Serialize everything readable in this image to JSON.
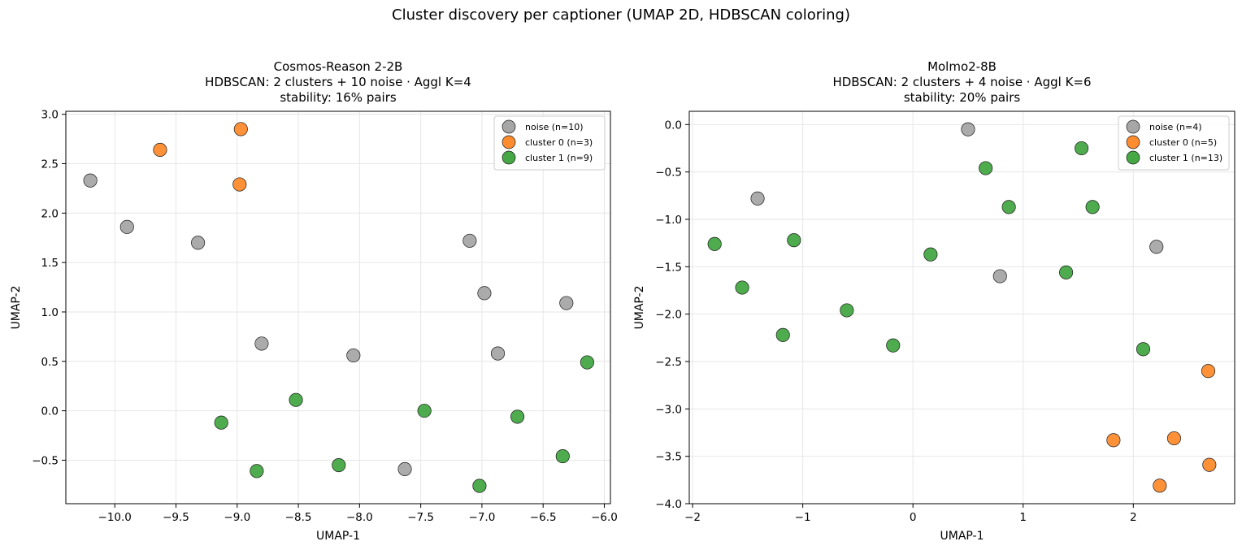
{
  "suptitle": "Cluster discovery per captioner (UMAP 2D, HDBSCAN coloring)",
  "colors": {
    "noise": "#a6a6a6",
    "cluster0": "#ff8c2e",
    "cluster1": "#45a845",
    "edge": "#1a1a1a",
    "grid": "#e6e6e6"
  },
  "chart_data": [
    {
      "type": "scatter",
      "title_lines": [
        "Cosmos-Reason 2-2B",
        "HDBSCAN: 2 clusters + 10 noise · Aggl K=4",
        "stability: 16% pairs"
      ],
      "xlabel": "UMAP-1",
      "ylabel": "UMAP-2",
      "xlim": [
        -10.4,
        -5.95
      ],
      "ylim": [
        -0.94,
        3.03
      ],
      "xticks": [
        -10.0,
        -9.5,
        -9.0,
        -8.5,
        -8.0,
        -7.5,
        -7.0,
        -6.5,
        -6.0
      ],
      "xtick_labels": [
        "−10.0",
        "−9.5",
        "−9.0",
        "−8.5",
        "−8.0",
        "−7.5",
        "−7.0",
        "−6.5",
        "−6.0"
      ],
      "yticks": [
        -0.5,
        0.0,
        0.5,
        1.0,
        1.5,
        2.0,
        2.5,
        3.0
      ],
      "ytick_labels": [
        "−0.5",
        "0.0",
        "0.5",
        "1.0",
        "1.5",
        "2.0",
        "2.5",
        "3.0"
      ],
      "grid": true,
      "legend_position": "top-right",
      "series": [
        {
          "name": "noise (n=10)",
          "color_key": "noise",
          "points": [
            [
              -10.2,
              2.33
            ],
            [
              -9.9,
              1.86
            ],
            [
              -9.32,
              1.7
            ],
            [
              -8.8,
              0.68
            ],
            [
              -8.05,
              0.56
            ],
            [
              -7.1,
              1.72
            ],
            [
              -6.98,
              1.19
            ],
            [
              -6.87,
              0.58
            ],
            [
              -6.31,
              1.09
            ],
            [
              -7.63,
              -0.59
            ]
          ]
        },
        {
          "name": "cluster 0 (n=3)",
          "color_key": "cluster0",
          "points": [
            [
              -9.63,
              2.64
            ],
            [
              -8.97,
              2.85
            ],
            [
              -8.98,
              2.29
            ]
          ]
        },
        {
          "name": "cluster 1 (n=9)",
          "color_key": "cluster1",
          "points": [
            [
              -9.13,
              -0.12
            ],
            [
              -8.52,
              0.11
            ],
            [
              -8.84,
              -0.61
            ],
            [
              -8.17,
              -0.55
            ],
            [
              -7.47,
              0.0
            ],
            [
              -6.71,
              -0.06
            ],
            [
              -7.02,
              -0.76
            ],
            [
              -6.34,
              -0.46
            ],
            [
              -6.14,
              0.49
            ]
          ]
        }
      ]
    },
    {
      "type": "scatter",
      "title_lines": [
        "Molmo2-8B",
        "HDBSCAN: 2 clusters + 4 noise · Aggl K=6",
        "stability: 20% pairs"
      ],
      "xlabel": "UMAP-1",
      "ylabel": "UMAP-2",
      "xlim": [
        -2.03,
        2.92
      ],
      "ylim": [
        -4.0,
        0.14
      ],
      "xticks": [
        -2,
        -1,
        0,
        1,
        2
      ],
      "xtick_labels": [
        "−2",
        "−1",
        "0",
        "1",
        "2"
      ],
      "yticks": [
        -4.0,
        -3.5,
        -3.0,
        -2.5,
        -2.0,
        -1.5,
        -1.0,
        -0.5,
        0.0
      ],
      "ytick_labels": [
        "−4.0",
        "−3.5",
        "−3.0",
        "−2.5",
        "−2.0",
        "−1.5",
        "−1.0",
        "−0.5",
        "0.0"
      ],
      "grid": true,
      "legend_position": "top-right",
      "series": [
        {
          "name": "noise (n=4)",
          "color_key": "noise",
          "points": [
            [
              0.5,
              -0.05
            ],
            [
              -1.41,
              -0.78
            ],
            [
              0.79,
              -1.6
            ],
            [
              2.21,
              -1.29
            ]
          ]
        },
        {
          "name": "cluster 0 (n=5)",
          "color_key": "cluster0",
          "points": [
            [
              2.68,
              -2.6
            ],
            [
              1.82,
              -3.33
            ],
            [
              2.37,
              -3.31
            ],
            [
              2.69,
              -3.59
            ],
            [
              2.24,
              -3.81
            ]
          ]
        },
        {
          "name": "cluster 1 (n=13)",
          "color_key": "cluster1",
          "points": [
            [
              1.53,
              -0.25
            ],
            [
              0.66,
              -0.46
            ],
            [
              0.87,
              -0.87
            ],
            [
              1.63,
              -0.87
            ],
            [
              -1.8,
              -1.26
            ],
            [
              -1.08,
              -1.22
            ],
            [
              0.16,
              -1.37
            ],
            [
              1.39,
              -1.56
            ],
            [
              -1.55,
              -1.72
            ],
            [
              -0.6,
              -1.96
            ],
            [
              -1.18,
              -2.22
            ],
            [
              -0.18,
              -2.33
            ],
            [
              2.09,
              -2.37
            ]
          ]
        }
      ]
    }
  ]
}
